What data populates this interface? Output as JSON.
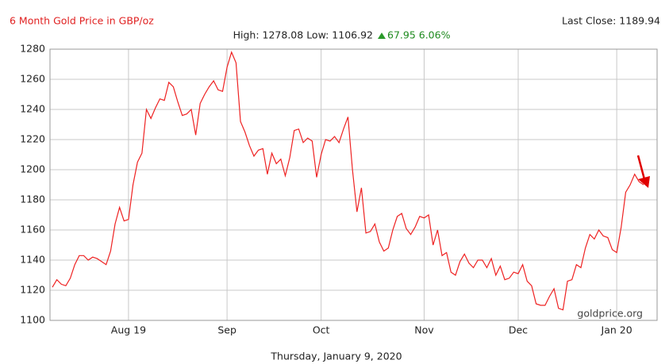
{
  "chart_data": {
    "type": "line",
    "title": "6 Month Gold Price in GBP/oz",
    "last_close": "Last Close: 1189.94",
    "stats": "High: 1278.08 Low: 1106.92",
    "change": "67.95 6.06%",
    "source": "goldprice.org",
    "date": "Thursday, January 9, 2020",
    "grid": true,
    "color": "#ee2222",
    "ylim": [
      1100,
      1280
    ],
    "yticks": [
      1100,
      1120,
      1140,
      1160,
      1180,
      1200,
      1220,
      1240,
      1260,
      1280
    ],
    "categories": [
      null,
      null,
      null,
      null,
      null,
      null,
      null,
      null,
      null,
      null,
      null,
      null,
      null,
      null,
      null,
      null,
      null,
      "Aug 19",
      null,
      null,
      null,
      null,
      null,
      null,
      null,
      null,
      null,
      null,
      null,
      null,
      null,
      null,
      null,
      null,
      null,
      null,
      null,
      null,
      null,
      "Sep",
      null,
      null,
      null,
      null,
      null,
      null,
      null,
      null,
      null,
      null,
      null,
      null,
      null,
      null,
      null,
      null,
      null,
      null,
      null,
      null,
      "Oct",
      null,
      null,
      null,
      null,
      null,
      null,
      null,
      null,
      null,
      null,
      null,
      null,
      null,
      null,
      null,
      null,
      null,
      null,
      null,
      null,
      null,
      null,
      "Nov",
      null,
      null,
      null,
      null,
      null,
      null,
      null,
      null,
      null,
      null,
      null,
      null,
      null,
      null,
      null,
      null,
      null,
      null,
      null,
      null,
      "Dec",
      null,
      null,
      null,
      null,
      null,
      null,
      null,
      null,
      null,
      null,
      null,
      null,
      null,
      null,
      null,
      null,
      null,
      null,
      null,
      null,
      null,
      "Jan 20",
      null,
      null,
      null,
      null,
      null,
      null
    ],
    "values": [
      1122,
      1127,
      1124,
      1123,
      1128,
      1137,
      1143,
      1143,
      1140,
      1142,
      1141,
      1139,
      1137,
      1146,
      1164,
      1175,
      1166,
      1167,
      1190,
      1205,
      1211,
      1240,
      1234,
      1241,
      1247,
      1246,
      1258,
      1255,
      1245,
      1236,
      1237,
      1240,
      1223,
      1244,
      1250,
      1255,
      1259,
      1253,
      1252,
      1268,
      1278,
      1271,
      1232,
      1225,
      1216,
      1209,
      1213,
      1214,
      1197,
      1211,
      1204,
      1207,
      1196,
      1208,
      1226,
      1227,
      1218,
      1221,
      1219,
      1195,
      1210,
      1220,
      1219,
      1222,
      1218,
      1227,
      1235,
      1200,
      1172,
      1188,
      1158,
      1159,
      1164,
      1152,
      1146,
      1148,
      1160,
      1169,
      1171,
      1161,
      1157,
      1162,
      1169,
      1168,
      1170,
      1150,
      1160,
      1143,
      1145,
      1132,
      1130,
      1139,
      1144,
      1138,
      1135,
      1140,
      1140,
      1135,
      1141,
      1130,
      1136,
      1127,
      1128,
      1132,
      1131,
      1137,
      1126,
      1123,
      1111,
      1110,
      1110,
      1116,
      1121,
      1108,
      1107,
      1126,
      1127,
      1137,
      1135,
      1148,
      1157,
      1154,
      1160,
      1156,
      1155,
      1147,
      1145,
      1162,
      1185,
      1190,
      1197,
      1192,
      1190
    ]
  }
}
